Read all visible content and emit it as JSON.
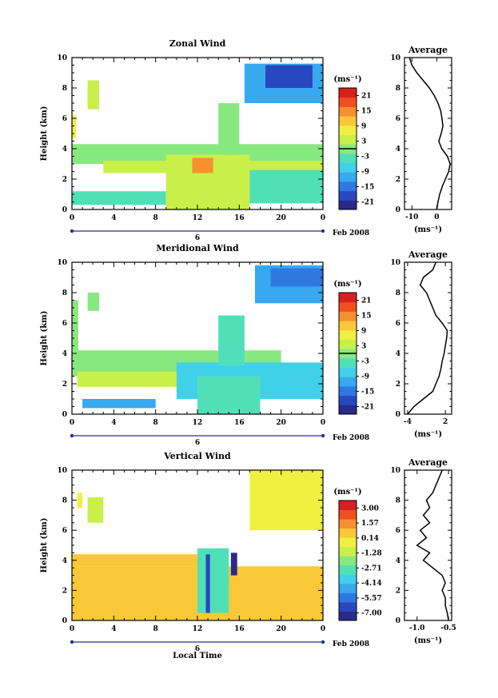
{
  "figure": {
    "xlabel": "Local Time",
    "date_label": "Feb 2008",
    "day_label": "6",
    "ylabel": "Height (km)",
    "unit_label": "(ms⁻¹)",
    "avg_title": "Average"
  },
  "colormap": [
    "#2a2a88",
    "#2848c0",
    "#2e78e0",
    "#38a8f0",
    "#40d0e8",
    "#50e0b8",
    "#88e880",
    "#c8f048",
    "#f0f040",
    "#f8c838",
    "#f89030",
    "#f05020",
    "#d82020"
  ],
  "chart_data": [
    {
      "type": "heatmap",
      "title": "Zonal Wind",
      "x_ticks": [
        "0",
        "4",
        "8",
        "12",
        "16",
        "20",
        "0"
      ],
      "xlim": [
        0,
        24
      ],
      "y_ticks": [
        "0",
        "2",
        "4",
        "6",
        "8",
        "10"
      ],
      "ylim": [
        0,
        10
      ],
      "colorbar_ticks": [
        "21",
        "15",
        "9",
        "3",
        "-3",
        "-9",
        "-15",
        "-21"
      ],
      "colorbar_range": [
        -24,
        24
      ],
      "zero_line_value": 0,
      "regions": [
        {
          "t0": 1.5,
          "t1": 2.6,
          "h0": 6.6,
          "h1": 8.5,
          "v": 2
        },
        {
          "t0": 0,
          "t1": 0.4,
          "h0": 4.7,
          "h1": 6.2,
          "v": 9
        },
        {
          "t0": 0,
          "t1": 24,
          "h0": 3.0,
          "h1": 4.3,
          "v": 1
        },
        {
          "t0": 3,
          "t1": 24,
          "h0": 2.4,
          "h1": 3.2,
          "v": 5
        },
        {
          "t0": 0,
          "t1": 9,
          "h0": 0.3,
          "h1": 1.2,
          "v": -4
        },
        {
          "t0": 9,
          "t1": 17,
          "h0": 0,
          "h1": 3.6,
          "v": 3
        },
        {
          "t0": 11.5,
          "t1": 13.5,
          "h0": 2.4,
          "h1": 3.4,
          "v": 14
        },
        {
          "t0": 17,
          "t1": 24,
          "h0": 0.4,
          "h1": 2.6,
          "v": -5
        },
        {
          "t0": 14,
          "t1": 16,
          "h0": 3.6,
          "h1": 7.0,
          "v": 1
        },
        {
          "t0": 16.5,
          "t1": 24,
          "h0": 7.0,
          "h1": 9.6,
          "v": -10
        },
        {
          "t0": 18.5,
          "t1": 23,
          "h0": 8.0,
          "h1": 9.5,
          "v": -19
        }
      ],
      "avg": {
        "x_ticks": [
          "-10",
          "0"
        ],
        "xlim": [
          -13,
          6
        ],
        "h": [
          0,
          0.5,
          1,
          1.5,
          2,
          2.5,
          3,
          3.5,
          4,
          4.5,
          5,
          5.5,
          6,
          6.5,
          7,
          7.5,
          8,
          8.5,
          9,
          9.5,
          10
        ],
        "u": [
          0,
          0.5,
          1.2,
          2.2,
          3.5,
          4.8,
          5.4,
          4.3,
          2.0,
          0.8,
          1.8,
          2.5,
          2.1,
          1.6,
          0.5,
          -1.0,
          -3.0,
          -5.5,
          -8.0,
          -10.0,
          -11.0
        ]
      }
    },
    {
      "type": "heatmap",
      "title": "Meridional Wind",
      "x_ticks": [
        "0",
        "4",
        "8",
        "12",
        "16",
        "20",
        "0"
      ],
      "xlim": [
        0,
        24
      ],
      "y_ticks": [
        "0",
        "2",
        "4",
        "6",
        "8",
        "10"
      ],
      "ylim": [
        0,
        10
      ],
      "colorbar_ticks": [
        "21",
        "15",
        "9",
        "3",
        "-3",
        "-9",
        "-15",
        "-21"
      ],
      "colorbar_range": [
        -24,
        24
      ],
      "zero_line_value": 0,
      "regions": [
        {
          "t0": 0,
          "t1": 0.6,
          "h0": 4.2,
          "h1": 7.5,
          "v": -1
        },
        {
          "t0": 1.5,
          "t1": 2.6,
          "h0": 6.8,
          "h1": 8.0,
          "v": 0
        },
        {
          "t0": 0,
          "t1": 20,
          "h0": 2.5,
          "h1": 4.2,
          "v": 1
        },
        {
          "t0": 0.5,
          "t1": 12,
          "h0": 1.8,
          "h1": 2.8,
          "v": 5
        },
        {
          "t0": 10,
          "t1": 24,
          "h0": 1.0,
          "h1": 3.4,
          "v": -6
        },
        {
          "t0": 1,
          "t1": 8,
          "h0": 0.4,
          "h1": 1.0,
          "v": -10
        },
        {
          "t0": 12,
          "t1": 18,
          "h0": 0,
          "h1": 2.5,
          "v": -5
        },
        {
          "t0": 14,
          "t1": 16.5,
          "h0": 3.2,
          "h1": 6.5,
          "v": -2
        },
        {
          "t0": 17.5,
          "t1": 24,
          "h0": 7.3,
          "h1": 9.8,
          "v": -11
        },
        {
          "t0": 19,
          "t1": 24,
          "h0": 8.4,
          "h1": 9.6,
          "v": -16
        }
      ],
      "avg": {
        "x_ticks": [
          "-4",
          "2"
        ],
        "xlim": [
          -4.5,
          3
        ],
        "h": [
          0,
          0.5,
          1,
          1.5,
          2,
          2.5,
          3,
          3.5,
          4,
          4.5,
          5,
          5.5,
          6,
          6.5,
          7,
          7.5,
          8,
          8.5,
          9,
          9.5,
          10
        ],
        "u": [
          -4.0,
          -3.0,
          -1.5,
          0.0,
          0.5,
          1.0,
          1.3,
          1.5,
          1.8,
          2.0,
          2.2,
          2.3,
          1.5,
          0.5,
          0.0,
          -0.5,
          -1.0,
          -2.0,
          -1.5,
          0.0,
          0.5
        ]
      }
    },
    {
      "type": "heatmap",
      "title": "Vertical Wind",
      "x_ticks": [
        "0",
        "4",
        "8",
        "12",
        "16",
        "20",
        "0"
      ],
      "xlim": [
        0,
        24
      ],
      "y_ticks": [
        "0",
        "2",
        "4",
        "6",
        "8",
        "10"
      ],
      "ylim": [
        0,
        10
      ],
      "colorbar_ticks": [
        "3.00",
        "1.57",
        "0.14",
        "-1.28",
        "-2.71",
        "-4.14",
        "-5.57",
        "-7.00"
      ],
      "colorbar_range": [
        -7.7,
        3.7
      ],
      "zero_line_value": null,
      "regions": [
        {
          "t0": 0,
          "t1": 24,
          "h0": 0,
          "h1": 3.6,
          "v": 0.4
        },
        {
          "t0": 0,
          "t1": 13,
          "h0": 3.6,
          "h1": 4.4,
          "v": 0.6
        },
        {
          "t0": 1.5,
          "t1": 3,
          "h0": 6.5,
          "h1": 8.2,
          "v": -0.8
        },
        {
          "t0": 0.5,
          "t1": 1,
          "h0": 7.5,
          "h1": 8.5,
          "v": -0.3
        },
        {
          "t0": 12,
          "t1": 15,
          "h0": 0.5,
          "h1": 4.8,
          "v": -3.0
        },
        {
          "t0": 12.8,
          "t1": 13.2,
          "h0": 0.5,
          "h1": 4.4,
          "v": -6.0
        },
        {
          "t0": 15.2,
          "t1": 15.8,
          "h0": 3.0,
          "h1": 4.5,
          "v": -7.0
        },
        {
          "t0": 17,
          "t1": 24,
          "h0": 6.0,
          "h1": 10,
          "v": -0.6
        }
      ],
      "avg": {
        "x_ticks": [
          "-1.0",
          "-0.5"
        ],
        "xlim": [
          -1.2,
          -0.45
        ],
        "h": [
          0,
          0.5,
          1,
          1.5,
          2,
          2.5,
          3,
          3.5,
          4,
          4.5,
          5,
          5.5,
          6,
          6.5,
          7,
          7.5,
          8,
          8.5,
          9,
          9.5,
          10
        ],
        "u": [
          -0.5,
          -0.52,
          -0.55,
          -0.55,
          -0.6,
          -0.55,
          -0.6,
          -0.75,
          -0.9,
          -0.8,
          -1.0,
          -0.85,
          -0.95,
          -0.8,
          -0.9,
          -0.8,
          -0.85,
          -0.75,
          -0.7,
          -0.65,
          -0.6
        ]
      }
    }
  ]
}
